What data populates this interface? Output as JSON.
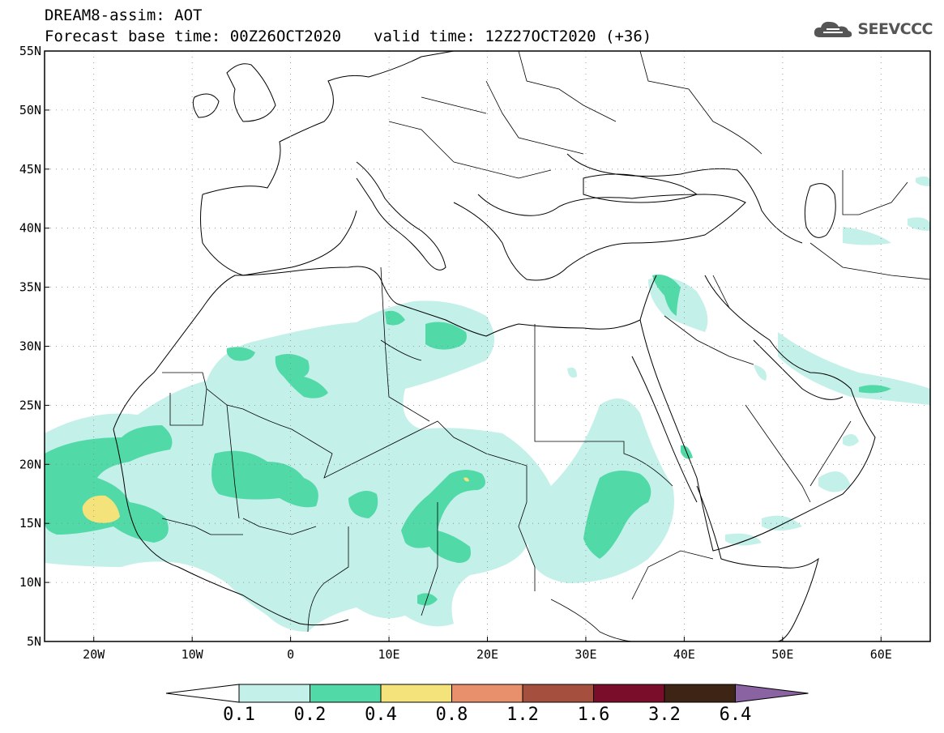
{
  "header": {
    "title": "DREAM8-assim: AOT",
    "base_time": "Forecast base time: 00Z26OCT2020",
    "valid_time": "valid time: 12Z27OCT2020 (+36)"
  },
  "logo": {
    "text": "SEEVCCC",
    "icon": "cloud-icon"
  },
  "map": {
    "lat_labels": [
      "55N",
      "50N",
      "45N",
      "40N",
      "35N",
      "30N",
      "25N",
      "20N",
      "15N",
      "10N",
      "5N"
    ],
    "lon_labels": [
      "20W",
      "10W",
      "0",
      "10E",
      "20E",
      "30E",
      "40E",
      "50E",
      "60E"
    ],
    "lon_range": [
      -25,
      65
    ],
    "lat_range": [
      5,
      55
    ],
    "grid": "dotted"
  },
  "colorbar": {
    "labels": [
      "0.1",
      "0.2",
      "0.4",
      "0.8",
      "1.2",
      "1.6",
      "3.2",
      "6.4"
    ],
    "colors": [
      "#ffffff",
      "#c4f0ea",
      "#52d9a8",
      "#f3e37a",
      "#e8906c",
      "#a5503e",
      "#7a0e2a",
      "#3d2414",
      "#8a63a3"
    ]
  }
}
